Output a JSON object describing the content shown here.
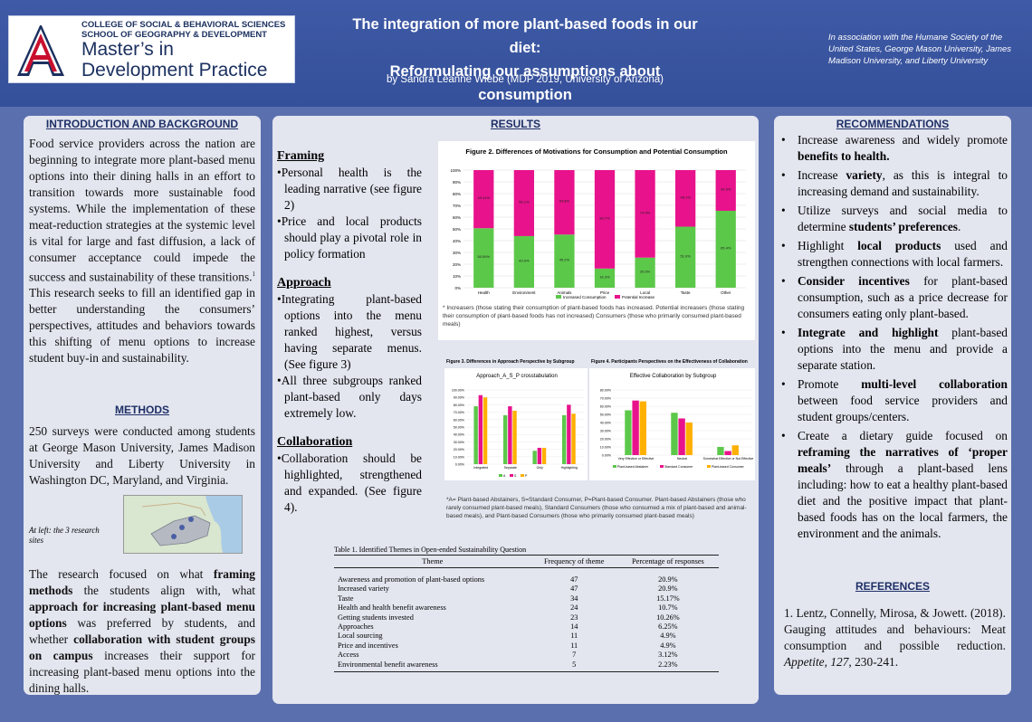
{
  "header": {
    "college_line1": "COLLEGE OF SOCIAL & BEHAVIORAL SCIENCES",
    "college_line2": "SCHOOL OF GEOGRAPHY & DEVELOPMENT",
    "program_line1": "Master’s in",
    "program_line2": "Development Practice",
    "title_line1": "The integration of more plant-based foods in our diet:",
    "title_line2": "Reformulating our assumptions about consumption",
    "author": "by Sandra Leanne Wiebe (MDP 2019, University of Arizona)",
    "association": "In association with the Humane Society of the United States, George Mason University, James Madison University, and Liberty University",
    "colors": {
      "header_bg": "#3f5aa6",
      "ua_red": "#c8102e",
      "ua_navy": "#1c3160",
      "panel_bg": "#e3e5ef"
    }
  },
  "intro": {
    "heading": "INTRODUCTION AND BACKGROUND",
    "text": "Food service providers across the nation are beginning to integrate more plant-based menu options into their dining halls in an effort to transition towards more sustainable food systems. While the implementation of these meat-reduction strategies at the systemic level is vital for large and fast diffusion, a lack of consumer acceptance could impede the success and sustainability of these transitions.",
    "footnote_mark": "1",
    "text2": " This research seeks to fill an identified gap in better understanding the consumers’ perspectives, attitudes and behaviors towards this shifting of menu options to increase student buy-in and sustainability."
  },
  "methods": {
    "heading": "METHODS",
    "text": "250 surveys were conducted among students at George Mason University, James Madison University and Liberty University in Washington DC, Maryland, and Virginia.",
    "map_caption": "At left: the 3 research sites",
    "p2_a": "The research focused on what ",
    "p2_b": "framing methods",
    "p2_c": " the students align with, what ",
    "p2_d": "approach for increasing plant-based menu options",
    "p2_e": " was preferred by students, and whether ",
    "p2_f": "collaboration with student groups on campus",
    "p2_g": " increases their support for increasing plant-based menu options into the dining halls."
  },
  "results": {
    "heading": "RESULTS",
    "framing_head": "Framing",
    "framing_bullets": [
      "Personal health is the leading narrative (see figure 2)",
      "Price and local products should play a pivotal role in policy formation"
    ],
    "approach_head": "Approach",
    "approach_bullets": [
      "Integrating plant-based options into the menu ranked highest, versus having separate menus. (See figure 3)",
      "All three subgroups ranked plant-based only days extremely low."
    ],
    "collab_head": "Collaboration",
    "collab_bullets": [
      "Collaboration should be highlighted, strengthened and expanded. (See figure 4)."
    ],
    "fig2_caption": "* Increasers (those stating their consumption of plant-based foods has increased. Potential increasers (those stating their consumption of plant-based foods has not increased) Consumers (those who primarily consumed plant-based meals)",
    "fig34_caption": "*A= Plant-based Abstainers, S=Standard Consumer, P=Plant-based Consumer. Plant-based Abstainers (those who rarely consumed plant-based meals), Standard Consumers (those who consumed a mix of plant-based and animal-based meals), and Plant-based Consumers (those who primarily consumed plant-based meals)",
    "table": {
      "title": "Table 1. Identified Themes in Open-ended Sustainability Question",
      "headers": [
        "Theme",
        "Frequency of theme",
        "Percentage of responses"
      ],
      "rows": [
        [
          "Awareness and promotion of plant-based options",
          "47",
          "20.9%"
        ],
        [
          "Increased variety",
          "47",
          "20.9%"
        ],
        [
          "Taste",
          "34",
          "15.17%"
        ],
        [
          "Health and health benefit awareness",
          "24",
          "10.7%"
        ],
        [
          "Getting students invested",
          "23",
          "10.26%"
        ],
        [
          "Approaches",
          "14",
          "6.25%"
        ],
        [
          "Local sourcing",
          "11",
          "4.9%"
        ],
        [
          "Price and incentives",
          "11",
          "4.9%"
        ],
        [
          "Access",
          "7",
          "3.12%"
        ],
        [
          "Environmental benefit awareness",
          "5",
          "2.23%"
        ]
      ]
    }
  },
  "chart_data": [
    {
      "type": "bar",
      "stacked": true,
      "title": "Figure 2. Differences of Motivations for Consumption and Potential Consumption",
      "categories": [
        "Health",
        "Environment",
        "Animals",
        "Price",
        "Local",
        "Taste",
        "Other"
      ],
      "series": [
        {
          "name": "Increased Consumption",
          "values": [
            50.59,
            43.9,
            45.2,
            16.3,
            25.6,
            51.9,
            65.4
          ],
          "color": "#5cc84a"
        },
        {
          "name": "Potential Increase",
          "values": [
            49.41,
            56.1,
            54.8,
            83.7,
            74.4,
            48.1,
            34.6
          ],
          "color": "#e8128c"
        }
      ],
      "ylim": [
        0,
        100
      ],
      "yticks": [
        "0%",
        "10%",
        "20%",
        "30%",
        "40%",
        "50%",
        "60%",
        "70%",
        "80%",
        "90%",
        "100%"
      ],
      "data_labels_pos": [
        "50.59%",
        "43.9%",
        "45.2%",
        "16.3%",
        "25.6%",
        "51.9%",
        "65.4%"
      ],
      "data_labels_neg": [
        "49.41%",
        "56.1%",
        "54.8%",
        "83.7%",
        "74.4%",
        "48.1%",
        "34.6%"
      ],
      "legend": "bottom"
    },
    {
      "type": "bar",
      "title": "Figure 3. Differences in Approach Perspective by Subgroup",
      "subtitle": "Approach_A_S_P crosstabulation",
      "categories": [
        "Integrated",
        "Separate",
        "Only",
        "Highlighting"
      ],
      "series": [
        {
          "name": "A",
          "values": [
            78,
            66,
            18,
            66
          ],
          "color": "#5cc84a"
        },
        {
          "name": "S",
          "values": [
            93,
            78,
            22,
            80
          ],
          "color": "#e8128c"
        },
        {
          "name": "P",
          "values": [
            90,
            72,
            22,
            68
          ],
          "color": "#ffb000"
        }
      ],
      "ylim": [
        0,
        100
      ],
      "yticks": [
        "0.00%",
        "10.00%",
        "20.00%",
        "30.00%",
        "40.00%",
        "50.00%",
        "60.00%",
        "70.00%",
        "80.00%",
        "90.00%",
        "100.00%"
      ],
      "legend": "bottom"
    },
    {
      "type": "bar",
      "title": "Figure 4. Participants Perspectives on the Effectiveness of Collaboration",
      "subtitle": "Effective Collaboration by Subgroup",
      "categories": [
        "Very Effective or Effective",
        "Neutral",
        "Somewhat Effective or Not Effective"
      ],
      "series": [
        {
          "name": "Plant-based Abstainer",
          "values": [
            55,
            52,
            10
          ],
          "color": "#5cc84a"
        },
        {
          "name": "Standard Consumer",
          "values": [
            67,
            45,
            5
          ],
          "color": "#e8128c"
        },
        {
          "name": "Plant-based Consumer",
          "values": [
            66,
            40,
            12
          ],
          "color": "#ffb000"
        }
      ],
      "ylim": [
        0,
        80
      ],
      "yticks": [
        "0.00%",
        "10.00%",
        "20.00%",
        "30.00%",
        "40.00%",
        "50.00%",
        "60.00%",
        "70.00%",
        "80.00%"
      ],
      "legend": "bottom"
    }
  ],
  "recommendations": {
    "heading": "RECOMMENDATIONS",
    "items": [
      {
        "pre": "Increase awareness and widely promote ",
        "bold": "benefits to health.",
        "post": ""
      },
      {
        "pre": "Increase ",
        "bold": "variety",
        "post": ", as this is integral to increasing demand and sustainability."
      },
      {
        "pre": "Utilize surveys and social media to determine ",
        "bold": "students’ preferences",
        "post": "."
      },
      {
        "pre": "Highlight ",
        "bold": "local products",
        "post": " used and strengthen connections with local farmers."
      },
      {
        "pre": "",
        "bold": "Consider incentives",
        "post": " for plant-based consumption, such as a price decrease for consumers eating only plant-based."
      },
      {
        "pre": "",
        "bold": "Integrate and highlight",
        "post": " plant-based options into the menu and provide a separate station."
      },
      {
        "pre": "Promote ",
        "bold": "multi-level collaboration",
        "post": " between food service providers and student groups/centers."
      },
      {
        "pre": "Create a dietary guide focused on ",
        "bold": "reframing the narratives of ‘proper meals’",
        "post": " through a plant-based lens including: how to eat a healthy plant-based diet and the positive impact that plant-based foods has on the local farmers, the environment and the animals."
      }
    ]
  },
  "references": {
    "heading": "REFERENCES",
    "ref1_a": "1. Lentz, Connelly, Mirosa, & Jowett. (2018). Gauging attitudes and behaviours: Meat consumption and possible reduction. ",
    "ref1_b": "Appetite, 127",
    "ref1_c": ", 230-241."
  }
}
